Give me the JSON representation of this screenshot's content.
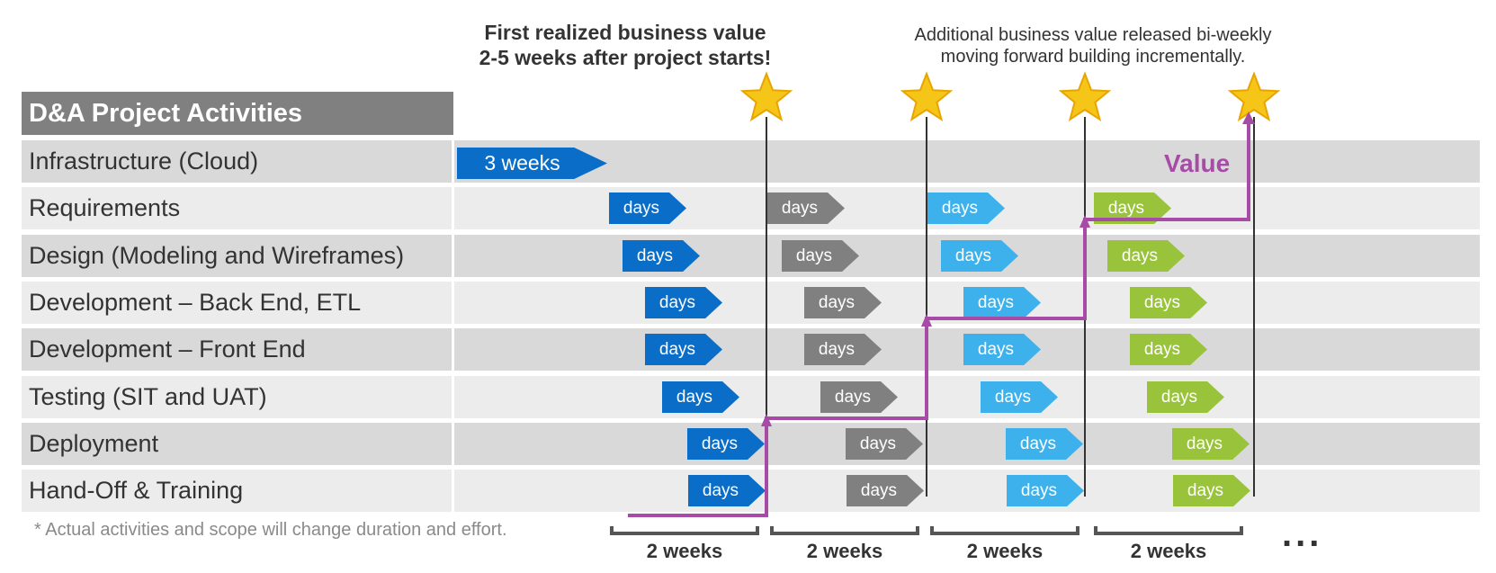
{
  "header": {
    "title": "D&A Project Activities"
  },
  "top_notes": {
    "first_value_line1": "First realized business value",
    "first_value_line2": "2-5 weeks after project starts!",
    "additional_line1": "Additional business value released bi-weekly",
    "additional_line2": "moving forward building incrementally."
  },
  "rows": [
    {
      "label": "Infrastructure (Cloud)"
    },
    {
      "label": "Requirements"
    },
    {
      "label": "Design (Modeling and Wireframes)"
    },
    {
      "label": "Development – Back End, ETL"
    },
    {
      "label": "Development – Front End"
    },
    {
      "label": "Testing (SIT and UAT)"
    },
    {
      "label": "Deployment"
    },
    {
      "label": "Hand-Off & Training"
    }
  ],
  "infrastructure_bar": {
    "label": "3 weeks"
  },
  "activity_bar_label": "days",
  "sprints": [
    {
      "label": "2 weeks",
      "color": "#0a6ec9"
    },
    {
      "label": "2 weeks",
      "color": "#808080"
    },
    {
      "label": "2 weeks",
      "color": "#3cb1ec"
    },
    {
      "label": "2 weeks",
      "color": "#98c33a"
    }
  ],
  "value_label": "Value",
  "value_line_color": "#a64ca6",
  "star_color": "#f5c518",
  "continuation": "...",
  "footnote": "* Actual activities and scope will change duration and effort."
}
